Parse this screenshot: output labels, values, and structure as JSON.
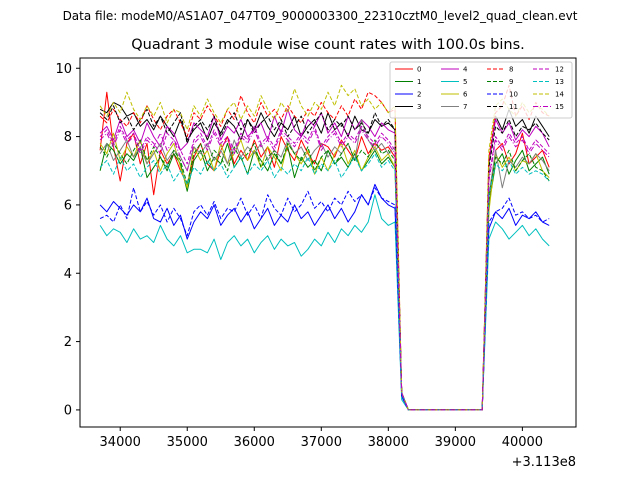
{
  "figure": {
    "suptitle": "Data file: modeM0/AS1A07_047T09_9000003300_22310cztM0_level2_quad_clean.evt",
    "title": "Quadrant 3 module wise count rates with 100.0s bins.",
    "x_offset_label": "+3.113e8"
  },
  "chart_data": {
    "type": "line",
    "title": "Quadrant 3 module wise count rates with 100.0s bins.",
    "xlabel": "",
    "ylabel": "",
    "x_offset": 311300000,
    "xlim": [
      33400,
      40800
    ],
    "ylim": [
      -0.5,
      10.3
    ],
    "xticks": [
      34000,
      35000,
      36000,
      37000,
      38000,
      39000,
      40000
    ],
    "yticks": [
      0,
      2,
      4,
      6,
      8,
      10
    ],
    "x": [
      33700,
      33800,
      33900,
      34000,
      34100,
      34200,
      34300,
      34400,
      34500,
      34600,
      34700,
      34800,
      34900,
      35000,
      35100,
      35200,
      35300,
      35400,
      35500,
      35600,
      35700,
      35800,
      35900,
      36000,
      36100,
      36200,
      36300,
      36400,
      36500,
      36600,
      36700,
      36800,
      36900,
      37000,
      37100,
      37200,
      37300,
      37400,
      37500,
      37600,
      37700,
      37800,
      37900,
      38000,
      38100,
      38200,
      38300,
      38400,
      38500,
      38600,
      38700,
      38800,
      38900,
      39000,
      39100,
      39200,
      39300,
      39400,
      39500,
      39600,
      39700,
      39800,
      39900,
      40000,
      40100,
      40200,
      40300,
      40400
    ],
    "legend": {
      "placement": "top-right",
      "columns": 4
    },
    "series": [
      {
        "name": "0",
        "color": "#ff0000",
        "style": "solid",
        "values": [
          7.6,
          9.3,
          7.7,
          6.7,
          7.8,
          8.1,
          7.2,
          7.8,
          6.3,
          7.6,
          7.2,
          7.5,
          7.0,
          6.6,
          7.4,
          7.8,
          7.2,
          7.0,
          7.6,
          8.0,
          7.2,
          7.6,
          7.3,
          7.9,
          7.4,
          7.7,
          7.1,
          8.0,
          7.6,
          7.3,
          7.9,
          7.5,
          7.2,
          7.8,
          7.7,
          7.4,
          7.9,
          7.6,
          7.3,
          8.0,
          7.5,
          7.8,
          7.6,
          7.7,
          7.4,
          0.5,
          0.0,
          0.0,
          0.0,
          0.0,
          0.0,
          0.0,
          0.0,
          0.0,
          0.0,
          0.0,
          0.0,
          0.0,
          5.9,
          7.6,
          7.8,
          7.2,
          7.5,
          8.1,
          7.2,
          7.4,
          7.6,
          7.1
        ]
      },
      {
        "name": "1",
        "color": "#008000",
        "style": "solid",
        "values": [
          7.0,
          7.8,
          7.6,
          7.2,
          7.5,
          7.3,
          7.7,
          6.8,
          7.1,
          7.4,
          7.0,
          7.5,
          7.2,
          6.4,
          7.3,
          7.6,
          7.0,
          7.4,
          7.2,
          7.8,
          7.1,
          7.4,
          6.9,
          7.6,
          7.3,
          7.0,
          7.5,
          7.2,
          7.7,
          6.8,
          7.4,
          7.1,
          7.3,
          7.0,
          7.6,
          7.2,
          7.4,
          7.1,
          7.5,
          7.0,
          7.3,
          7.6,
          7.2,
          7.4,
          7.1,
          0.5,
          0.0,
          0.0,
          0.0,
          0.0,
          0.0,
          0.0,
          0.0,
          0.0,
          0.0,
          0.0,
          0.0,
          0.0,
          6.0,
          7.2,
          7.5,
          6.9,
          7.3,
          7.6,
          7.0,
          7.2,
          7.4,
          6.9
        ]
      },
      {
        "name": "2",
        "color": "#0000ff",
        "style": "solid",
        "values": [
          6.0,
          5.8,
          6.1,
          5.9,
          5.7,
          6.0,
          5.8,
          6.2,
          5.6,
          5.5,
          5.9,
          5.4,
          5.7,
          5.0,
          5.5,
          5.8,
          5.6,
          6.0,
          5.4,
          5.7,
          5.9,
          5.5,
          5.8,
          5.3,
          5.6,
          5.9,
          5.4,
          5.7,
          5.5,
          6.0,
          5.6,
          5.8,
          5.4,
          5.7,
          6.0,
          5.6,
          5.9,
          5.5,
          5.8,
          6.3,
          6.0,
          6.6,
          6.2,
          6.0,
          5.9,
          0.4,
          0.0,
          0.0,
          0.0,
          0.0,
          0.0,
          0.0,
          0.0,
          0.0,
          0.0,
          0.0,
          0.0,
          0.0,
          5.3,
          5.8,
          5.6,
          5.9,
          5.4,
          5.7,
          5.6,
          5.8,
          5.5,
          5.4
        ]
      },
      {
        "name": "3",
        "color": "#000000",
        "style": "solid",
        "values": [
          8.8,
          8.7,
          9.0,
          8.9,
          8.6,
          8.7,
          8.3,
          8.5,
          8.2,
          8.6,
          8.3,
          8.0,
          8.5,
          7.9,
          8.2,
          8.4,
          7.9,
          8.4,
          8.1,
          8.5,
          8.3,
          7.9,
          8.5,
          8.2,
          8.7,
          8.3,
          8.0,
          8.4,
          8.2,
          8.6,
          8.0,
          8.3,
          8.5,
          8.1,
          8.7,
          8.2,
          8.4,
          8.0,
          8.6,
          8.2,
          8.1,
          8.5,
          8.3,
          8.4,
          8.2,
          0.5,
          0.0,
          0.0,
          0.0,
          0.0,
          0.0,
          0.0,
          0.0,
          0.0,
          0.0,
          0.0,
          0.0,
          0.0,
          7.2,
          8.6,
          8.2,
          8.8,
          8.3,
          8.5,
          8.1,
          8.6,
          8.3,
          8.0
        ]
      },
      {
        "name": "4",
        "color": "#bf00bf",
        "style": "solid",
        "values": [
          8.1,
          8.3,
          7.9,
          8.5,
          8.0,
          8.2,
          7.8,
          8.4,
          8.0,
          7.7,
          8.3,
          8.1,
          7.6,
          7.8,
          8.4,
          8.2,
          8.0,
          8.6,
          7.9,
          8.3,
          8.1,
          8.5,
          8.0,
          8.2,
          8.4,
          7.9,
          8.6,
          8.1,
          8.8,
          8.2,
          8.0,
          8.5,
          8.3,
          8.7,
          8.1,
          8.4,
          8.0,
          8.6,
          8.2,
          8.5,
          8.3,
          8.0,
          8.4,
          8.2,
          8.1,
          0.5,
          0.0,
          0.0,
          0.0,
          0.0,
          0.0,
          0.0,
          0.0,
          0.0,
          0.0,
          0.0,
          0.0,
          0.0,
          7.3,
          8.5,
          8.1,
          8.4,
          7.9,
          8.2,
          8.0,
          8.3,
          8.1,
          7.7
        ]
      },
      {
        "name": "5",
        "color": "#00bfbf",
        "style": "solid",
        "values": [
          5.4,
          5.1,
          5.3,
          5.2,
          4.9,
          5.3,
          5.0,
          5.1,
          4.9,
          5.4,
          5.0,
          4.8,
          5.1,
          4.6,
          4.7,
          4.7,
          4.6,
          5.0,
          4.4,
          4.9,
          5.1,
          4.8,
          5.0,
          4.6,
          4.9,
          5.1,
          4.7,
          5.0,
          4.8,
          4.9,
          4.5,
          4.7,
          5.0,
          4.8,
          5.2,
          4.9,
          5.3,
          5.1,
          5.4,
          5.2,
          5.5,
          6.3,
          5.6,
          5.4,
          5.5,
          0.3,
          0.0,
          0.0,
          0.0,
          0.0,
          0.0,
          0.0,
          0.0,
          0.0,
          0.0,
          0.0,
          0.0,
          0.0,
          5.0,
          5.5,
          5.3,
          5.0,
          5.2,
          5.4,
          5.1,
          5.3,
          5.0,
          4.8
        ]
      },
      {
        "name": "6",
        "color": "#bfbf00",
        "style": "solid",
        "values": [
          7.8,
          7.5,
          8.1,
          7.3,
          7.7,
          7.4,
          7.9,
          7.2,
          7.6,
          7.0,
          7.5,
          7.8,
          7.1,
          6.5,
          7.7,
          7.3,
          7.6,
          7.0,
          7.8,
          7.2,
          7.5,
          7.9,
          7.3,
          7.6,
          7.1,
          7.7,
          7.4,
          7.0,
          7.8,
          7.5,
          7.2,
          7.6,
          6.9,
          7.4,
          7.0,
          7.5,
          7.8,
          7.2,
          7.6,
          7.0,
          7.4,
          7.7,
          7.3,
          7.5,
          7.1,
          0.5,
          0.0,
          0.0,
          0.0,
          0.0,
          0.0,
          0.0,
          0.0,
          0.0,
          0.0,
          0.0,
          0.0,
          0.0,
          5.8,
          7.5,
          7.1,
          7.4,
          7.0,
          7.3,
          7.2,
          7.5,
          7.0,
          6.8
        ]
      },
      {
        "name": "7",
        "color": "#808080",
        "style": "solid",
        "values": [
          7.5,
          7.8,
          7.3,
          7.6,
          7.9,
          7.4,
          7.7,
          7.2,
          7.5,
          7.8,
          7.3,
          7.6,
          7.4,
          7.0,
          7.7,
          7.5,
          7.8,
          7.3,
          7.6,
          7.2,
          7.9,
          7.4,
          7.7,
          7.5,
          7.8,
          7.3,
          7.6,
          7.4,
          7.9,
          7.5,
          7.7,
          7.3,
          7.6,
          7.8,
          7.4,
          7.7,
          7.5,
          7.8,
          7.3,
          8.5,
          7.9,
          7.6,
          7.8,
          7.5,
          7.7,
          0.5,
          0.0,
          0.0,
          0.0,
          0.0,
          0.0,
          0.0,
          0.0,
          0.0,
          0.0,
          0.0,
          0.0,
          0.0,
          6.3,
          7.6,
          6.5,
          7.3,
          7.1,
          7.4,
          7.2,
          7.5,
          7.3,
          7.0
        ]
      },
      {
        "name": "8",
        "color": "#ff0000",
        "style": "dashed",
        "values": [
          8.6,
          8.4,
          8.8,
          8.5,
          8.3,
          8.7,
          8.4,
          8.9,
          8.5,
          8.2,
          8.6,
          8.8,
          8.4,
          8.0,
          8.7,
          8.5,
          8.9,
          8.6,
          8.3,
          8.8,
          8.5,
          9.2,
          8.7,
          8.4,
          9.0,
          8.6,
          8.8,
          8.5,
          8.9,
          8.6,
          8.4,
          8.8,
          8.6,
          9.0,
          8.7,
          8.5,
          8.9,
          8.6,
          9.1,
          8.8,
          9.3,
          9.2,
          9.0,
          8.7,
          8.8,
          0.5,
          0.0,
          0.0,
          0.0,
          0.0,
          0.0,
          0.0,
          0.0,
          0.0,
          0.0,
          0.0,
          0.0,
          0.0,
          7.4,
          8.7,
          8.9,
          9.5,
          8.6,
          8.9,
          8.5,
          9.0,
          8.7,
          8.6
        ]
      },
      {
        "name": "9",
        "color": "#008000",
        "style": "dashed",
        "values": [
          7.7,
          7.4,
          7.8,
          7.5,
          7.2,
          7.6,
          7.9,
          7.3,
          7.7,
          7.4,
          7.1,
          7.6,
          7.3,
          6.6,
          7.5,
          7.8,
          7.2,
          7.6,
          7.4,
          7.0,
          7.7,
          7.3,
          7.5,
          7.8,
          7.1,
          7.4,
          7.6,
          7.2,
          7.8,
          7.5,
          7.3,
          7.7,
          7.0,
          7.4,
          7.6,
          7.2,
          7.5,
          7.8,
          7.3,
          7.6,
          7.4,
          7.9,
          7.5,
          7.6,
          7.3,
          0.5,
          0.0,
          0.0,
          0.0,
          0.0,
          0.0,
          0.0,
          0.0,
          0.0,
          0.0,
          0.0,
          0.0,
          0.0,
          6.2,
          7.4,
          7.2,
          7.6,
          7.0,
          7.3,
          7.5,
          7.1,
          7.0,
          6.7
        ]
      },
      {
        "name": "10",
        "color": "#0000ff",
        "style": "dashed",
        "values": [
          5.6,
          5.7,
          5.5,
          6.0,
          5.6,
          6.5,
          5.8,
          6.1,
          5.7,
          6.0,
          5.5,
          5.9,
          5.6,
          5.1,
          5.8,
          6.0,
          5.7,
          6.1,
          5.6,
          5.9,
          5.8,
          6.2,
          5.7,
          6.0,
          5.6,
          6.3,
          5.9,
          5.7,
          6.2,
          5.8,
          6.0,
          6.4,
          5.9,
          6.1,
          5.8,
          6.2,
          6.0,
          6.4,
          6.1,
          6.3,
          6.0,
          6.5,
          6.2,
          6.1,
          6.0,
          0.4,
          0.0,
          0.0,
          0.0,
          0.0,
          0.0,
          0.0,
          0.0,
          0.0,
          0.0,
          0.0,
          0.0,
          0.0,
          5.5,
          5.8,
          5.9,
          6.2,
          5.7,
          5.8,
          5.6,
          5.7,
          5.5,
          5.6
        ]
      },
      {
        "name": "11",
        "color": "#000000",
        "style": "dashed",
        "values": [
          8.7,
          8.5,
          8.9,
          8.4,
          8.6,
          8.2,
          8.5,
          8.8,
          8.3,
          8.6,
          8.1,
          8.4,
          8.7,
          7.8,
          8.3,
          8.5,
          8.2,
          8.6,
          8.0,
          8.4,
          8.7,
          8.2,
          8.5,
          8.1,
          8.4,
          8.6,
          8.2,
          8.5,
          8.0,
          8.3,
          8.6,
          8.1,
          8.4,
          8.7,
          8.2,
          8.5,
          8.3,
          8.6,
          8.2,
          8.4,
          8.1,
          8.7,
          8.3,
          8.5,
          8.2,
          0.5,
          0.0,
          0.0,
          0.0,
          0.0,
          0.0,
          0.0,
          0.0,
          0.0,
          0.0,
          0.0,
          0.0,
          0.0,
          7.1,
          8.3,
          8.1,
          8.5,
          8.0,
          8.3,
          8.2,
          8.4,
          8.1,
          7.9
        ]
      },
      {
        "name": "12",
        "color": "#bf00bf",
        "style": "dashed",
        "values": [
          8.0,
          8.2,
          7.8,
          8.3,
          7.9,
          8.1,
          7.6,
          8.0,
          7.8,
          7.5,
          8.1,
          7.9,
          7.6,
          7.2,
          7.9,
          8.1,
          7.7,
          8.2,
          7.8,
          8.0,
          7.6,
          8.1,
          7.9,
          8.3,
          7.8,
          8.0,
          7.7,
          8.2,
          8.0,
          7.8,
          8.1,
          7.9,
          8.3,
          7.7,
          8.0,
          8.2,
          7.8,
          8.1,
          7.9,
          8.3,
          8.0,
          7.8,
          8.1,
          7.9,
          7.6,
          0.5,
          0.0,
          0.0,
          0.0,
          0.0,
          0.0,
          0.0,
          0.0,
          0.0,
          0.0,
          0.0,
          0.0,
          0.0,
          6.8,
          8.0,
          7.7,
          8.1,
          7.8,
          8.0,
          7.6,
          7.9,
          7.7,
          7.5
        ]
      },
      {
        "name": "13",
        "color": "#00bfbf",
        "style": "dashed",
        "values": [
          7.1,
          7.3,
          6.9,
          7.4,
          7.0,
          7.2,
          6.8,
          7.1,
          7.3,
          6.9,
          7.2,
          6.7,
          7.0,
          6.6,
          7.1,
          6.9,
          7.3,
          7.0,
          7.2,
          6.8,
          7.1,
          7.4,
          6.9,
          7.2,
          7.0,
          7.3,
          6.8,
          7.1,
          6.9,
          7.2,
          7.0,
          7.4,
          6.9,
          7.2,
          7.0,
          7.3,
          6.8,
          7.1,
          7.4,
          7.0,
          7.2,
          7.5,
          7.1,
          7.3,
          7.0,
          0.5,
          0.0,
          0.0,
          0.0,
          0.0,
          0.0,
          0.0,
          0.0,
          0.0,
          0.0,
          0.0,
          0.0,
          0.0,
          6.3,
          7.2,
          7.0,
          7.3,
          6.9,
          7.1,
          6.9,
          7.0,
          6.9,
          6.7
        ]
      },
      {
        "name": "14",
        "color": "#bfbf00",
        "style": "dashed",
        "values": [
          8.9,
          8.6,
          9.0,
          8.7,
          9.3,
          8.8,
          8.5,
          8.9,
          8.6,
          9.0,
          8.4,
          8.8,
          8.7,
          8.2,
          8.9,
          8.6,
          9.1,
          8.7,
          8.4,
          8.8,
          9.0,
          8.5,
          8.9,
          8.6,
          9.2,
          8.8,
          8.5,
          9.0,
          8.7,
          9.4,
          8.9,
          8.6,
          9.0,
          8.8,
          9.3,
          8.9,
          9.5,
          9.2,
          9.4,
          8.9,
          9.1,
          8.8,
          9.0,
          8.7,
          8.9,
          0.5,
          0.0,
          0.0,
          0.0,
          0.0,
          0.0,
          0.0,
          0.0,
          0.0,
          0.0,
          0.0,
          0.0,
          0.0,
          7.6,
          8.9,
          9.1,
          8.8,
          8.6,
          9.0,
          8.7,
          8.9,
          8.8,
          8.6
        ]
      },
      {
        "name": "15",
        "color": "#bf00bf",
        "style": "dashdot",
        "values": [
          7.9,
          8.1,
          7.7,
          8.2,
          7.8,
          8.0,
          7.5,
          7.9,
          7.7,
          8.1,
          7.6,
          7.9,
          7.4,
          7.0,
          7.8,
          8.0,
          7.6,
          8.1,
          7.7,
          7.9,
          7.5,
          8.0,
          7.8,
          8.2,
          7.7,
          7.9,
          7.6,
          8.1,
          7.9,
          7.7,
          8.0,
          7.8,
          8.2,
          7.6,
          7.9,
          8.1,
          7.7,
          8.0,
          7.8,
          8.2,
          7.9,
          7.7,
          8.0,
          7.8,
          7.5,
          0.5,
          0.0,
          0.0,
          0.0,
          0.0,
          0.0,
          0.0,
          0.0,
          0.0,
          0.0,
          0.0,
          0.0,
          0.0,
          6.7,
          7.9,
          7.6,
          8.0,
          7.7,
          7.9,
          7.5,
          7.8,
          7.6,
          7.4
        ]
      }
    ]
  }
}
